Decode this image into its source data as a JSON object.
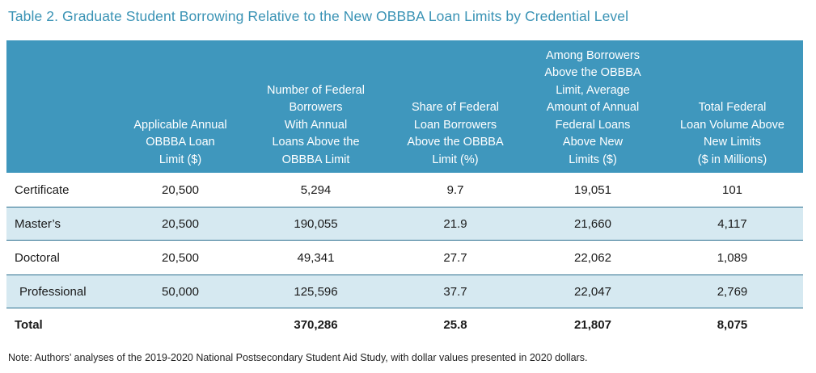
{
  "title": "Table 2. Graduate Student Borrowing Relative to the New OBBBA Loan Limits by Credential Level",
  "headers": [
    [],
    [
      "Applicable Annual",
      "OBBBA Loan",
      "Limit ($)"
    ],
    [
      "Number of Federal",
      "Borrowers",
      "With Annual",
      "Loans Above the",
      "OBBBA Limit"
    ],
    [
      "Share of Federal",
      "Loan Borrowers",
      "Above the OBBBA",
      "Limit (%)"
    ],
    [
      "Among Borrowers",
      "Above the OBBBA",
      "Limit, Average",
      "Amount of Annual",
      "Federal Loans",
      "Above New",
      "Limits ($)"
    ],
    [
      "Total Federal",
      "Loan Volume Above",
      "New Limits",
      "($ in Millions)"
    ]
  ],
  "rows": [
    {
      "label": "Certificate",
      "limit": "20,500",
      "borrowers": "5,294",
      "share": "9.7",
      "avg": "19,051",
      "volume": "101"
    },
    {
      "label": "Master’s",
      "limit": "20,500",
      "borrowers": "190,055",
      "share": "21.9",
      "avg": "21,660",
      "volume": "4,117"
    },
    {
      "label": "Doctoral",
      "limit": "20,500",
      "borrowers": "49,341",
      "share": "27.7",
      "avg": "22,062",
      "volume": "1,089"
    },
    {
      "label": "Professional",
      "limit": "50,000",
      "borrowers": "125,596",
      "share": "37.7",
      "avg": "22,047",
      "volume": "2,769"
    }
  ],
  "total": {
    "label": "Total",
    "limit": "",
    "borrowers": "370,286",
    "share": "25.8",
    "avg": "21,807",
    "volume": "8,075"
  },
  "note": "Note: Authors’ analyses of the 2019-2020 National Postsecondary Student Aid Study, with dollar values presented in 2020 dollars."
}
